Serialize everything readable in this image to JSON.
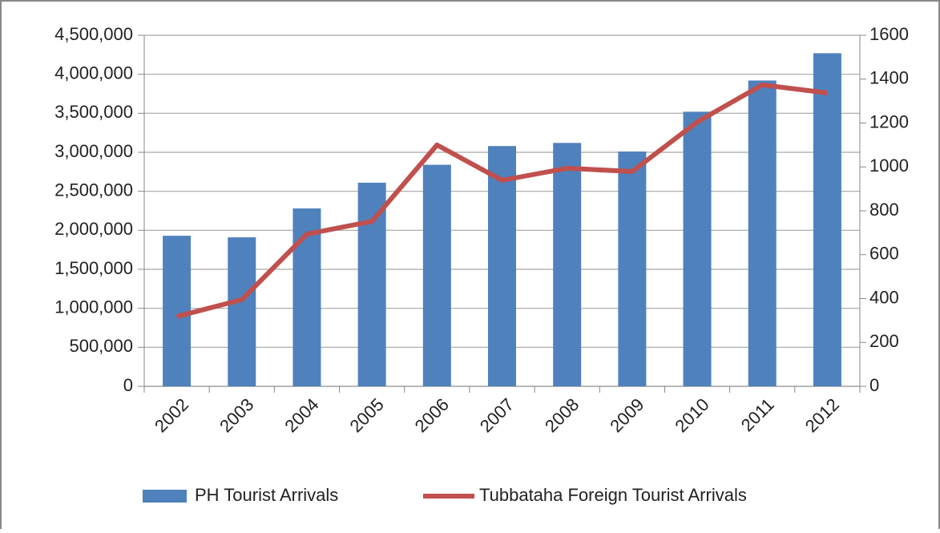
{
  "chart_data": {
    "type": "combo",
    "categories": [
      "2002",
      "2003",
      "2004",
      "2005",
      "2006",
      "2007",
      "2008",
      "2009",
      "2010",
      "2011",
      "2012"
    ],
    "series": [
      {
        "name": "PH Tourist Arrivals",
        "type": "bar",
        "color": "#4f81bd",
        "axis": "y",
        "values": [
          1930000,
          1910000,
          2280000,
          2610000,
          2840000,
          3080000,
          3120000,
          3010000,
          3520000,
          3920000,
          4270000
        ]
      },
      {
        "name": "Tubbataha Foreign Tourist Arrivals",
        "type": "line",
        "color": "#c0504d",
        "axis": "y2",
        "values": [
          318,
          395,
          694,
          752,
          1100,
          939,
          994,
          979,
          1205,
          1374,
          1337
        ]
      }
    ],
    "ylim": [
      0,
      4500000
    ],
    "yticks": [
      0,
      {
        "value": 500000,
        "label": "500,000"
      },
      {
        "value": 1000000,
        "label": "1,000,000"
      },
      {
        "value": 1500000,
        "label": "1,500,000"
      },
      {
        "value": 2000000,
        "label": "2,000,000"
      },
      {
        "value": 2500000,
        "label": "2,500,000"
      },
      {
        "value": 3000000,
        "label": "3,000,000"
      },
      {
        "value": 3500000,
        "label": "3,500,000"
      },
      {
        "value": 4000000,
        "label": "4,000,000"
      },
      {
        "value": 4500000,
        "label": "4,500,000"
      }
    ],
    "y2lim": [
      0,
      1600
    ],
    "y2ticks": [
      0,
      200,
      400,
      600,
      800,
      1000,
      1200,
      1400,
      1600
    ],
    "grid": true,
    "legend": "bottom"
  }
}
